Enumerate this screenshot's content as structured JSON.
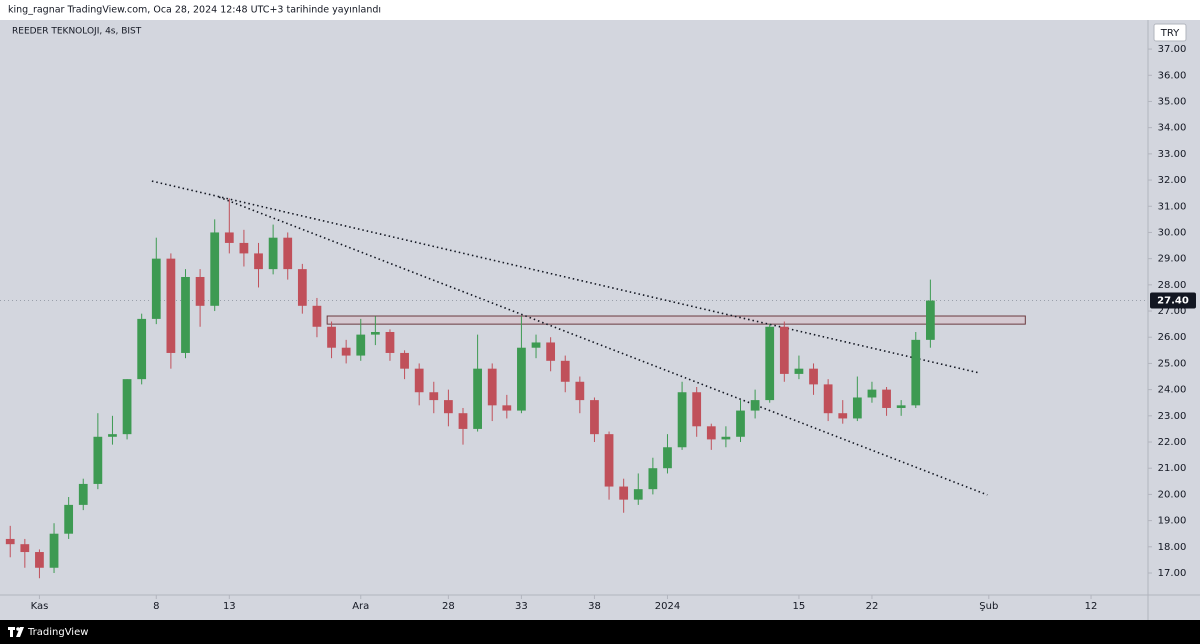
{
  "header": {
    "text": "king_ragnar TradingView.com, Oca 28, 2024 12:48 UTC+3 tarihinde yayınlandı"
  },
  "footer": {
    "brand": "TradingView"
  },
  "chart_data": {
    "type": "candlestick",
    "title": "REEDER TEKNOLOJI, 4s, BIST",
    "currency": "TRY",
    "up_color": "#3d9a52",
    "down_color": "#c0505a",
    "x": [
      -2,
      -1,
      0,
      1,
      2,
      3,
      4,
      5,
      6,
      7,
      8,
      9,
      10,
      11,
      12,
      13,
      14,
      15,
      16,
      17,
      18,
      19,
      20,
      21,
      22,
      23,
      24,
      25,
      26,
      27,
      28,
      29,
      30,
      31,
      32,
      33,
      34,
      35,
      36,
      37,
      38,
      39,
      40,
      41,
      42,
      43,
      44,
      45,
      46,
      47,
      48,
      49,
      50,
      51,
      52,
      53,
      54,
      55,
      56,
      57,
      58,
      59,
      60,
      61
    ],
    "open": [
      18.3,
      18.1,
      17.8,
      17.2,
      18.5,
      19.6,
      20.4,
      22.2,
      22.3,
      24.4,
      26.7,
      29.0,
      25.4,
      28.3,
      27.2,
      30.0,
      29.6,
      29.2,
      28.6,
      29.8,
      28.6,
      27.2,
      26.4,
      25.6,
      25.3,
      26.1,
      26.2,
      25.4,
      24.8,
      23.9,
      23.6,
      23.1,
      22.5,
      24.8,
      23.4,
      23.2,
      25.6,
      25.8,
      25.1,
      24.3,
      23.6,
      22.3,
      20.3,
      19.8,
      20.2,
      21.0,
      21.8,
      23.9,
      22.6,
      22.1,
      22.2,
      23.2,
      23.6,
      26.4,
      24.6,
      24.8,
      24.2,
      23.1,
      22.9,
      23.7,
      24.0,
      23.3,
      23.4,
      25.9
    ],
    "high": [
      18.8,
      18.3,
      17.9,
      18.9,
      19.9,
      20.6,
      23.1,
      23.0,
      24.4,
      26.9,
      29.8,
      29.2,
      28.6,
      28.6,
      30.5,
      31.3,
      30.1,
      29.6,
      30.3,
      30.0,
      28.8,
      27.5,
      26.6,
      25.9,
      26.7,
      26.8,
      26.3,
      25.5,
      25.0,
      24.3,
      24.0,
      23.3,
      26.1,
      25.0,
      23.8,
      26.8,
      26.1,
      26.0,
      25.3,
      24.5,
      23.7,
      22.4,
      20.6,
      20.8,
      21.4,
      22.3,
      24.3,
      24.1,
      22.7,
      22.6,
      23.6,
      24.0,
      26.5,
      26.6,
      25.3,
      25.0,
      24.4,
      23.6,
      24.5,
      24.3,
      24.1,
      23.6,
      26.2,
      28.2
    ],
    "low": [
      17.6,
      17.2,
      16.8,
      17.0,
      18.3,
      19.4,
      20.2,
      21.9,
      22.1,
      24.2,
      26.5,
      24.8,
      25.2,
      26.4,
      27.0,
      29.2,
      28.7,
      27.9,
      28.4,
      28.2,
      26.9,
      26.0,
      25.2,
      25.0,
      25.1,
      25.7,
      25.1,
      24.4,
      23.4,
      23.1,
      22.6,
      21.9,
      22.4,
      22.8,
      22.9,
      23.1,
      25.2,
      24.7,
      23.9,
      23.1,
      22.0,
      19.8,
      19.3,
      19.6,
      20.0,
      20.8,
      21.7,
      22.2,
      21.7,
      21.8,
      22.0,
      22.9,
      23.5,
      24.3,
      24.4,
      23.8,
      22.8,
      22.7,
      22.8,
      23.5,
      23.0,
      23.0,
      23.3,
      25.6
    ],
    "close": [
      18.1,
      17.8,
      17.2,
      18.5,
      19.6,
      20.4,
      22.2,
      22.3,
      24.4,
      26.7,
      29.0,
      25.4,
      28.3,
      27.2,
      30.0,
      29.6,
      29.2,
      28.6,
      29.8,
      28.6,
      27.2,
      26.4,
      25.6,
      25.3,
      26.1,
      26.2,
      25.4,
      24.8,
      23.9,
      23.6,
      23.1,
      22.5,
      24.8,
      23.4,
      23.2,
      25.6,
      25.8,
      25.1,
      24.3,
      23.6,
      22.3,
      20.3,
      19.8,
      20.2,
      21.0,
      21.8,
      23.9,
      22.6,
      22.1,
      22.2,
      23.2,
      23.6,
      26.4,
      24.6,
      24.8,
      24.2,
      23.1,
      22.9,
      23.7,
      24.0,
      23.3,
      23.4,
      25.9,
      27.4
    ],
    "xlim": [
      -2.7,
      75.9
    ],
    "xticks": [
      {
        "value": 0,
        "label": "Kas"
      },
      8,
      13,
      {
        "value": 22,
        "label": "Ara"
      },
      28,
      33,
      38,
      {
        "value": 43,
        "label": "2024"
      },
      {
        "value": 52,
        "label": "15"
      },
      {
        "value": 57,
        "label": "22"
      },
      {
        "value": 65,
        "label": "Şub"
      },
      {
        "value": 72,
        "label": "12"
      }
    ],
    "ylim": [
      16.16,
      38.11
    ],
    "yticks": [
      {
        "value": 17,
        "label": "17.00"
      },
      {
        "value": 18,
        "label": "18.00"
      },
      {
        "value": 19,
        "label": "19.00"
      },
      {
        "value": 20,
        "label": "20.00"
      },
      {
        "value": 21,
        "label": "21.00"
      },
      {
        "value": 22,
        "label": "22.00"
      },
      {
        "value": 23,
        "label": "23.00"
      },
      {
        "value": 24,
        "label": "24.00"
      },
      {
        "value": 25,
        "label": "25.00"
      },
      {
        "value": 26,
        "label": "26.00"
      },
      {
        "value": 27,
        "label": "27.00"
      },
      {
        "value": 28,
        "label": "28.00"
      },
      {
        "value": 29,
        "label": "29.00"
      },
      {
        "value": 30,
        "label": "30.00"
      },
      {
        "value": 31,
        "label": "31.00"
      },
      {
        "value": 32,
        "label": "32.00"
      },
      {
        "value": 33,
        "label": "33.00"
      },
      {
        "value": 34,
        "label": "34.00"
      },
      {
        "value": 35,
        "label": "35.00"
      },
      {
        "value": 36,
        "label": "36.00"
      },
      {
        "value": 37,
        "label": "37.00"
      }
    ],
    "last_price": {
      "value": 27.4,
      "label": "27.40"
    },
    "trendlines": [
      {
        "x": [
          7.7,
          64.4
        ],
        "y": [
          31.96,
          24.63
        ]
      },
      {
        "x": [
          12.3,
          64.9
        ],
        "y": [
          31.35,
          19.98
        ]
      }
    ],
    "zone": {
      "x": [
        19.7,
        67.5
      ],
      "y": [
        26.5,
        26.81
      ]
    }
  }
}
